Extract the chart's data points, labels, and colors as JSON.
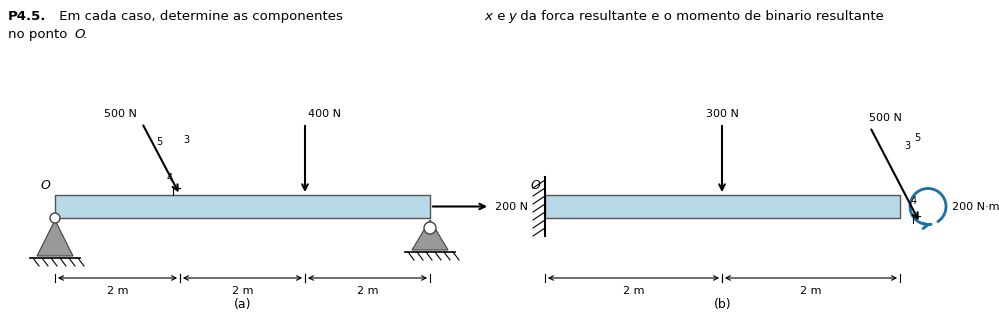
{
  "bg_color": "#ffffff",
  "beam_color": "#b8d9e8",
  "beam_edge_color": "#555555",
  "label_a": "(a)",
  "label_b": "(b)",
  "title_bold": "P4.5.",
  "title_rest": " Em cada caso, determine as componentes x e y da forca resultante e o momento de binario resultante",
  "title_line2": "no ponto O."
}
